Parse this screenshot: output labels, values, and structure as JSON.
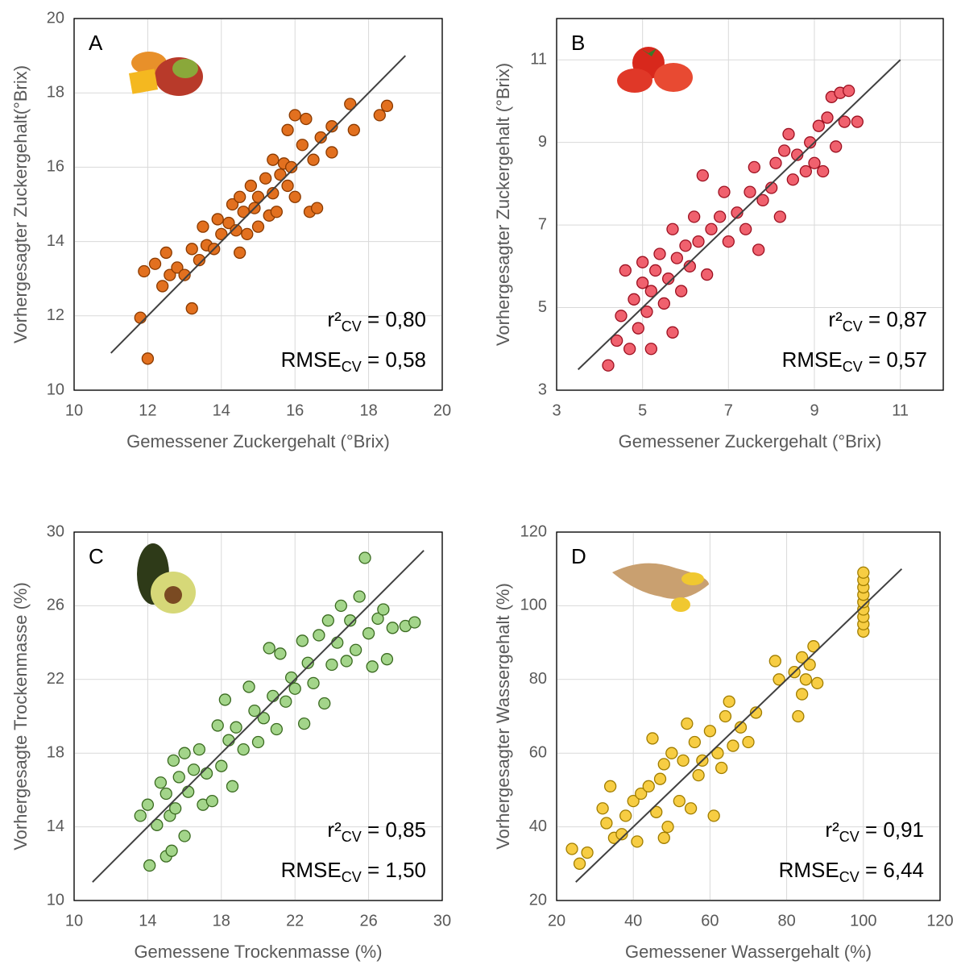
{
  "chart_data": [
    {
      "type": "scatter",
      "label": "A",
      "x_label": "Gemessener Zuckergehalt (°Brix)",
      "y_label": "Vorhergesagter Zuckergehalt(°Brix)",
      "color": "#e2701f",
      "edgecolor": "#8a3a00",
      "xlim": [
        10,
        20
      ],
      "ylim": [
        10,
        20
      ],
      "xticks": [
        10,
        12,
        14,
        16,
        18,
        20
      ],
      "yticks": [
        10,
        12,
        14,
        16,
        18,
        20
      ],
      "grid": true,
      "reference_line": {
        "x": [
          11,
          19
        ],
        "y": [
          11,
          19
        ]
      },
      "r2": {
        "text": "r²",
        "sub": "CV",
        "value": " = 0,80"
      },
      "rmse": {
        "text": "RMSE",
        "sub": "CV",
        "value": " = 0,58"
      },
      "x": [
        11.8,
        12,
        11.9,
        12.2,
        12.4,
        12.5,
        12.6,
        12.8,
        13,
        13.2,
        13.2,
        13.4,
        13.5,
        13.6,
        13.8,
        13.9,
        14,
        14.2,
        14.3,
        14.4,
        14.5,
        14.5,
        14.6,
        14.7,
        14.8,
        14.9,
        15,
        15,
        15.2,
        15.3,
        15.4,
        15.4,
        15.5,
        15.6,
        15.7,
        15.8,
        15.8,
        15.9,
        16,
        16,
        16.2,
        16.3,
        16.4,
        16.5,
        16.6,
        16.7,
        17,
        17,
        17.5,
        17.6,
        18.3,
        18.5
      ],
      "y": [
        11.95,
        10.85,
        13.2,
        13.4,
        12.8,
        13.7,
        13.1,
        13.3,
        13.1,
        12.2,
        13.8,
        13.5,
        14.4,
        13.9,
        13.8,
        14.6,
        14.2,
        14.5,
        15,
        14.3,
        13.7,
        15.2,
        14.8,
        14.2,
        15.5,
        14.9,
        14.4,
        15.2,
        15.7,
        14.7,
        16.2,
        15.3,
        14.8,
        15.8,
        16.1,
        15.5,
        17,
        16,
        17.4,
        15.2,
        16.6,
        17.3,
        14.8,
        16.2,
        14.9,
        16.8,
        17.1,
        16.4,
        17.7,
        17,
        17.4,
        17.65
      ]
    },
    {
      "type": "scatter",
      "label": "B",
      "x_label": "Gemessener Zuckergehalt (°Brix)",
      "y_label": "Vorhergesagter Zuckergehalt (°Brix)",
      "color": "#f0616e",
      "edgecolor": "#9c1020",
      "xlim": [
        3,
        12
      ],
      "ylim": [
        3,
        12
      ],
      "xticks": [
        3,
        5,
        7,
        9,
        11
      ],
      "yticks": [
        3,
        5,
        7,
        9,
        11
      ],
      "grid": true,
      "reference_line": {
        "x": [
          3.5,
          11
        ],
        "y": [
          3.5,
          11
        ]
      },
      "r2": {
        "text": "r²",
        "sub": "CV",
        "value": " = 0,87"
      },
      "rmse": {
        "text": "RMSE",
        "sub": "CV",
        "value": " = 0,57"
      },
      "x": [
        4.2,
        4.4,
        4.5,
        4.6,
        4.7,
        4.8,
        4.9,
        5,
        5,
        5.1,
        5.2,
        5.2,
        5.3,
        5.4,
        5.5,
        5.6,
        5.7,
        5.7,
        5.8,
        5.9,
        6,
        6.1,
        6.2,
        6.3,
        6.4,
        6.5,
        6.6,
        6.8,
        6.9,
        7,
        7.2,
        7.4,
        7.5,
        7.6,
        7.7,
        7.8,
        8,
        8.1,
        8.2,
        8.3,
        8.4,
        8.5,
        8.6,
        8.8,
        8.9,
        9,
        9.1,
        9.2,
        9.3,
        9.4,
        9.5,
        9.6,
        9.7,
        9.8,
        10
      ],
      "y": [
        3.6,
        4.2,
        4.8,
        5.9,
        4,
        5.2,
        4.5,
        5.6,
        6.1,
        4.9,
        4,
        5.4,
        5.9,
        6.3,
        5.1,
        5.7,
        4.4,
        6.9,
        6.2,
        5.4,
        6.5,
        6,
        7.2,
        6.6,
        8.2,
        5.8,
        6.9,
        7.2,
        7.8,
        6.6,
        7.3,
        6.9,
        7.8,
        8.4,
        6.4,
        7.6,
        7.9,
        8.5,
        7.2,
        8.8,
        9.2,
        8.1,
        8.7,
        8.3,
        9,
        8.5,
        9.4,
        8.3,
        9.6,
        10.1,
        8.9,
        10.2,
        9.5,
        10.25,
        9.5
      ]
    },
    {
      "type": "scatter",
      "label": "C",
      "x_label": "Gemessene Trockenmasse (%)",
      "y_label": "Vorhergesagte Trockenmasse (%)",
      "color": "#a3d58a",
      "edgecolor": "#3a6a20",
      "xlim": [
        10,
        30
      ],
      "ylim": [
        10,
        30
      ],
      "xticks": [
        10,
        14,
        18,
        22,
        26,
        30
      ],
      "yticks": [
        10,
        14,
        18,
        22,
        26,
        30
      ],
      "grid": true,
      "reference_line": {
        "x": [
          11,
          29
        ],
        "y": [
          11,
          29
        ]
      },
      "r2": {
        "text": "r²",
        "sub": "CV",
        "value": " = 0,85"
      },
      "rmse": {
        "text": "RMSE",
        "sub": "CV",
        "value": " = 1,50"
      },
      "x": [
        13.6,
        14,
        14.1,
        14.5,
        14.7,
        15,
        15,
        15.2,
        15.3,
        15.4,
        15.5,
        15.7,
        16,
        16,
        16.2,
        16.5,
        16.8,
        17,
        17.2,
        17.5,
        17.8,
        18,
        18.2,
        18.4,
        18.6,
        18.8,
        19.2,
        19.5,
        19.8,
        20,
        20.3,
        20.6,
        20.8,
        21,
        21.2,
        21.5,
        21.8,
        22,
        22.4,
        22.5,
        22.7,
        23,
        23.3,
        23.6,
        23.8,
        24,
        24.3,
        24.5,
        24.8,
        25,
        25.3,
        25.5,
        25.8,
        26,
        26.2,
        26.5,
        26.8,
        27,
        27.3,
        28,
        28.5
      ],
      "y": [
        14.6,
        15.2,
        11.9,
        14.1,
        16.4,
        12.4,
        15.8,
        14.6,
        12.7,
        17.6,
        15,
        16.7,
        13.5,
        18,
        15.9,
        17.1,
        18.2,
        15.2,
        16.9,
        15.4,
        19.5,
        17.3,
        20.9,
        18.7,
        16.2,
        19.4,
        18.2,
        21.6,
        20.3,
        18.6,
        19.9,
        23.7,
        21.1,
        19.3,
        23.4,
        20.8,
        22.1,
        21.5,
        24.1,
        19.6,
        22.9,
        21.8,
        24.4,
        20.7,
        25.2,
        22.8,
        24,
        26,
        23,
        25.2,
        23.6,
        26.5,
        28.6,
        24.5,
        22.7,
        25.3,
        25.8,
        23.1,
        24.8,
        24.9,
        25.1
      ]
    },
    {
      "type": "scatter",
      "label": "D",
      "x_label": "Gemessener Wassergehalt (%)",
      "y_label": "Vorhergesagter Wassergehalt (%)",
      "color": "#f7cd43",
      "edgecolor": "#a07d00",
      "xlim": [
        20,
        120
      ],
      "ylim": [
        20,
        120
      ],
      "xticks": [
        20,
        40,
        60,
        80,
        100,
        120
      ],
      "yticks": [
        20,
        40,
        60,
        80,
        100,
        120
      ],
      "grid": true,
      "reference_line": {
        "x": [
          25,
          110
        ],
        "y": [
          25,
          110
        ]
      },
      "r2": {
        "text": "r²",
        "sub": "CV",
        "value": " = 0,91"
      },
      "rmse": {
        "text": "RMSE",
        "sub": "CV",
        "value": " = 6,44"
      },
      "x": [
        24,
        26,
        28,
        32,
        33,
        34,
        35,
        37,
        38,
        40,
        41,
        42,
        44,
        45,
        46,
        47,
        48,
        48,
        49,
        50,
        52,
        53,
        54,
        55,
        56,
        57,
        58,
        60,
        61,
        62,
        63,
        64,
        65,
        66,
        68,
        70,
        72,
        77,
        78,
        82,
        83,
        84,
        84,
        85,
        86,
        87,
        88,
        100,
        100,
        100,
        100,
        100,
        100,
        100,
        100,
        100
      ],
      "y": [
        34,
        30,
        33,
        45,
        41,
        51,
        37,
        38,
        43,
        47,
        36,
        49,
        51,
        64,
        44,
        53,
        57,
        37,
        40,
        60,
        47,
        58,
        68,
        45,
        63,
        54,
        58,
        66,
        43,
        60,
        56,
        70,
        74,
        62,
        67,
        63,
        71,
        85,
        80,
        82,
        70,
        76,
        86,
        80,
        84,
        89,
        79,
        93,
        95,
        97,
        99,
        101,
        103,
        105,
        107,
        109
      ]
    }
  ]
}
